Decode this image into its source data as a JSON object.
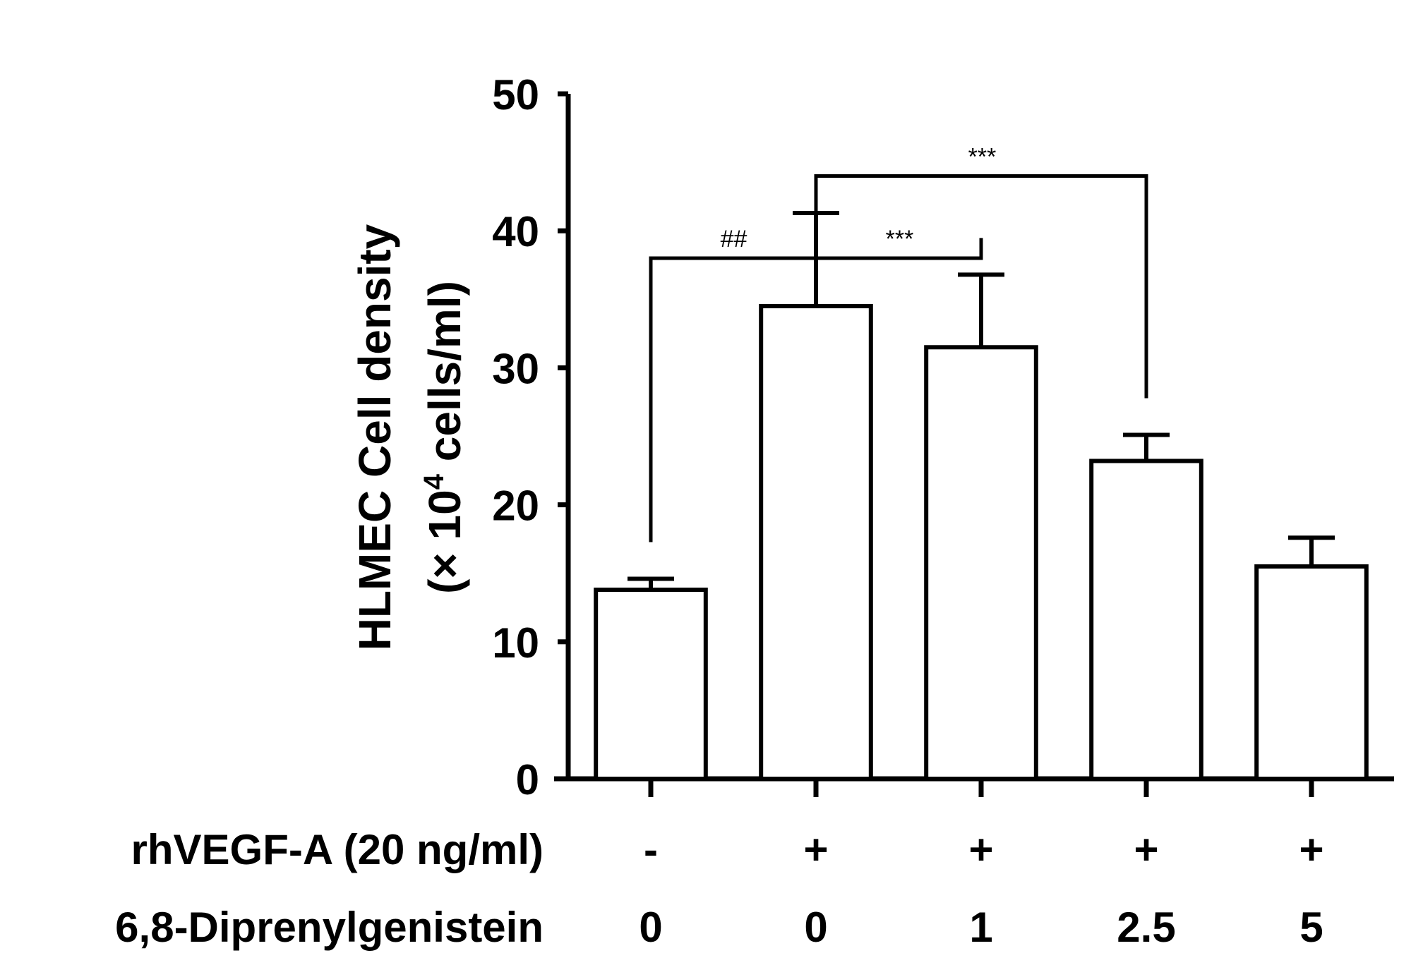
{
  "chart_data": {
    "type": "bar",
    "ylabel_line1": "HLMEC Cell density",
    "ylabel_line2_prefix": "(× 10",
    "ylabel_line2_sup": "4",
    "ylabel_line2_suffix": " cells/ml)",
    "ylim": [
      0,
      50
    ],
    "yticks": [
      "0",
      "10",
      "20",
      "30",
      "40",
      "50"
    ],
    "values": [
      13.8,
      34.5,
      31.5,
      23.2,
      15.5
    ],
    "errors": [
      0.8,
      6.8,
      5.3,
      1.9,
      2.1
    ],
    "factors": [
      {
        "label": "rhVEGF-A (20 ng/ml)",
        "values": [
          "-",
          "+",
          "+",
          "+",
          "+"
        ]
      },
      {
        "label": "6,8-Diprenylgenistein",
        "values": [
          "0",
          "0",
          "1",
          "2.5",
          "5"
        ]
      }
    ],
    "significance": [
      {
        "from": 0,
        "to": 1,
        "label": "##"
      },
      {
        "from": 1,
        "to": 2,
        "label": "***"
      },
      {
        "from": 1,
        "to": 3,
        "label": "***"
      }
    ],
    "grid": false,
    "colors": {
      "bar_fill": "#ffffff",
      "bar_stroke": "#000000"
    }
  }
}
